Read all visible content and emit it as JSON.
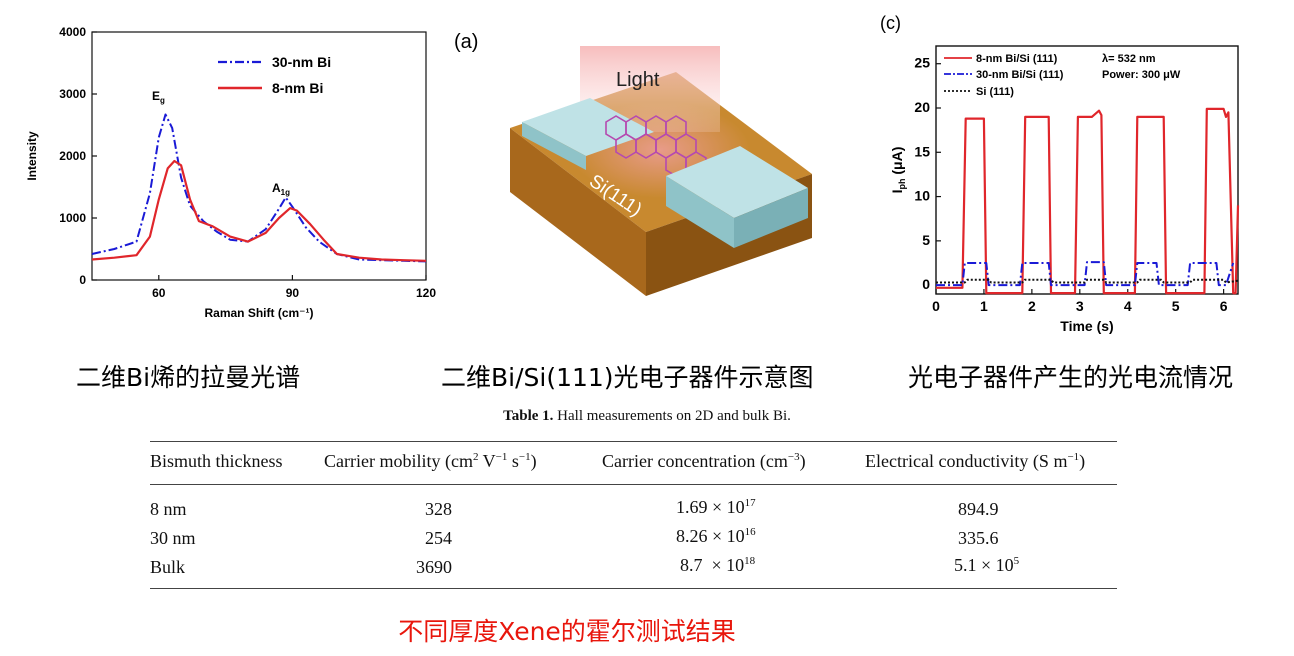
{
  "chart_data": [
    {
      "type": "line",
      "panel": "raman",
      "xlabel": "Raman Shift (cm⁻¹)",
      "ylabel": "Intensity",
      "xlim": [
        45,
        120
      ],
      "ylim": [
        0,
        4000
      ],
      "xticks": [
        "60",
        "90",
        "120"
      ],
      "yticks": [
        "0",
        "1000",
        "2000",
        "3000",
        "4000"
      ],
      "annotations": [
        {
          "base": "E",
          "sub": "g",
          "x": 61.5,
          "y": 2800
        },
        {
          "base": "A",
          "sub": "1g",
          "x": 89,
          "y": 1470
        }
      ],
      "series": [
        {
          "name": "30-nm Bi",
          "style": "dash-dot",
          "color": "#1a1ad6",
          "points": [
            [
              45,
              420
            ],
            [
              50,
              500
            ],
            [
              55,
              620
            ],
            [
              58,
              1400
            ],
            [
              60,
              2300
            ],
            [
              61.5,
              2670
            ],
            [
              63,
              2450
            ],
            [
              65,
              1650
            ],
            [
              67,
              1200
            ],
            [
              70,
              950
            ],
            [
              73,
              780
            ],
            [
              76,
              650
            ],
            [
              80,
              620
            ],
            [
              84,
              820
            ],
            [
              87,
              1150
            ],
            [
              88.5,
              1330
            ],
            [
              90,
              1180
            ],
            [
              93,
              850
            ],
            [
              96,
              620
            ],
            [
              100,
              420
            ],
            [
              105,
              330
            ],
            [
              110,
              320
            ],
            [
              115,
              310
            ],
            [
              120,
              300
            ]
          ]
        },
        {
          "name": "8-nm Bi",
          "style": "solid",
          "color": "#e0262b",
          "points": [
            [
              45,
              330
            ],
            [
              50,
              360
            ],
            [
              55,
              400
            ],
            [
              58,
              700
            ],
            [
              60,
              1300
            ],
            [
              62,
              1800
            ],
            [
              63.5,
              1920
            ],
            [
              65,
              1850
            ],
            [
              67,
              1300
            ],
            [
              69,
              950
            ],
            [
              72,
              870
            ],
            [
              76,
              700
            ],
            [
              80,
              620
            ],
            [
              84,
              760
            ],
            [
              87,
              1000
            ],
            [
              89.5,
              1160
            ],
            [
              91,
              1120
            ],
            [
              94,
              900
            ],
            [
              97,
              650
            ],
            [
              100,
              420
            ],
            [
              105,
              360
            ],
            [
              110,
              330
            ],
            [
              115,
              320
            ],
            [
              120,
              310
            ]
          ]
        }
      ]
    },
    {
      "type": "line",
      "panel": "photocurrent",
      "panel_label": "(c)",
      "xlabel": "Time (s)",
      "ylabel_base": "I",
      "ylabel_sub": "ph",
      "ylabel_tail": " (μA)",
      "xlim": [
        0,
        6.3
      ],
      "ylim": [
        -1,
        27
      ],
      "xticks": [
        "0",
        "1",
        "2",
        "3",
        "4",
        "5",
        "6"
      ],
      "yticks": [
        "0",
        "5",
        "10",
        "15",
        "20",
        "25"
      ],
      "notes": [
        "λ= 532 nm",
        "Power: 300 μW"
      ],
      "series": [
        {
          "name": "8-nm Bi/Si (111)",
          "style": "solid",
          "color": "#e0262b",
          "points": [
            [
              0,
              -0.3
            ],
            [
              0.55,
              -0.3
            ],
            [
              0.62,
              18.8
            ],
            [
              1.0,
              18.8
            ],
            [
              1.05,
              -0.9
            ],
            [
              1.8,
              -0.9
            ],
            [
              1.86,
              19.0
            ],
            [
              2.35,
              19.0
            ],
            [
              2.4,
              -0.9
            ],
            [
              2.9,
              -0.9
            ],
            [
              2.96,
              19.0
            ],
            [
              3.25,
              19.0
            ],
            [
              3.4,
              19.7
            ],
            [
              3.45,
              19.2
            ],
            [
              3.5,
              -0.9
            ],
            [
              4.15,
              -0.9
            ],
            [
              4.2,
              19.0
            ],
            [
              4.75,
              19.0
            ],
            [
              4.8,
              -0.9
            ],
            [
              5.6,
              -0.9
            ],
            [
              5.65,
              19.9
            ],
            [
              6.0,
              19.9
            ],
            [
              6.05,
              19.0
            ],
            [
              6.1,
              19.5
            ],
            [
              6.2,
              -0.9
            ],
            [
              6.25,
              -0.9
            ],
            [
              6.3,
              9
            ]
          ]
        },
        {
          "name": "30-nm Bi/Si (111)",
          "style": "dash-dot",
          "color": "#1a1ad6",
          "points": [
            [
              0,
              0
            ],
            [
              0.55,
              0
            ],
            [
              0.6,
              2.5
            ],
            [
              1.05,
              2.5
            ],
            [
              1.1,
              0
            ],
            [
              1.75,
              0
            ],
            [
              1.8,
              2.5
            ],
            [
              2.35,
              2.5
            ],
            [
              2.4,
              0
            ],
            [
              3.1,
              0
            ],
            [
              3.15,
              2.6
            ],
            [
              3.5,
              2.6
            ],
            [
              3.55,
              0
            ],
            [
              4.15,
              0
            ],
            [
              4.2,
              2.5
            ],
            [
              4.6,
              2.5
            ],
            [
              4.65,
              0
            ],
            [
              5.25,
              0
            ],
            [
              5.3,
              2.5
            ],
            [
              5.85,
              2.5
            ],
            [
              5.9,
              0
            ],
            [
              6.05,
              0
            ],
            [
              6.2,
              2.5
            ]
          ]
        },
        {
          "name": "Si (111)",
          "style": "dotted",
          "color": "#111111",
          "points": [
            [
              0,
              0.3
            ],
            [
              0.6,
              0.3
            ],
            [
              0.65,
              0.6
            ],
            [
              1.1,
              0.6
            ],
            [
              1.15,
              0.3
            ],
            [
              1.8,
              0.3
            ],
            [
              1.85,
              0.6
            ],
            [
              2.4,
              0.6
            ],
            [
              2.45,
              0.3
            ],
            [
              3.1,
              0.3
            ],
            [
              3.15,
              0.6
            ],
            [
              3.5,
              0.6
            ],
            [
              3.55,
              0.3
            ],
            [
              4.2,
              0.3
            ],
            [
              4.25,
              0.6
            ],
            [
              4.7,
              0.6
            ],
            [
              4.75,
              0.3
            ],
            [
              5.3,
              0.3
            ],
            [
              5.35,
              0.6
            ],
            [
              6.0,
              0.6
            ],
            [
              6.05,
              0.3
            ],
            [
              6.3,
              0.5
            ]
          ]
        }
      ]
    }
  ],
  "schematic": {
    "panel_label": "(a)",
    "light_label": "Light",
    "substrate_label": "Si(111)"
  },
  "captions": {
    "raman": "二维Bi烯的拉曼光谱",
    "device": "二维Bi/Si(111)光电子器件示意图",
    "photocurrent": "光电子器件产生的光电流情况"
  },
  "table": {
    "title_bold": "Table 1.",
    "title_rest": " Hall measurements on 2D and bulk Bi.",
    "headers": [
      {
        "base": "Bismuth thickness"
      },
      {
        "base": "Carrier mobility (cm",
        "sup1": "2",
        "mid": " V",
        "sup2": "−1",
        "mid2": " s",
        "sup3": "−1",
        "tail": ")"
      },
      {
        "base": "Carrier concentration (cm",
        "sup1": "−3",
        "tail": ")"
      },
      {
        "base": "Electrical conductivity (S m",
        "sup1": "−1",
        "tail": ")"
      }
    ],
    "rows": [
      {
        "thickness": "8 nm",
        "mobility": "328",
        "conc_base": "1.69 × 10",
        "conc_exp": "17",
        "cond_base": "894.9",
        "cond_exp": ""
      },
      {
        "thickness": "30 nm",
        "mobility": "254",
        "conc_base": "8.26 × 10",
        "conc_exp": "16",
        "cond_base": "335.6",
        "cond_exp": ""
      },
      {
        "thickness": "Bulk",
        "mobility": "3690",
        "conc_base": "8.7  × 10",
        "conc_exp": "18",
        "cond_base": "5.1 × 10",
        "cond_exp": "5"
      }
    ]
  },
  "bottom_note": "不同厚度Xene的霍尔测试结果"
}
